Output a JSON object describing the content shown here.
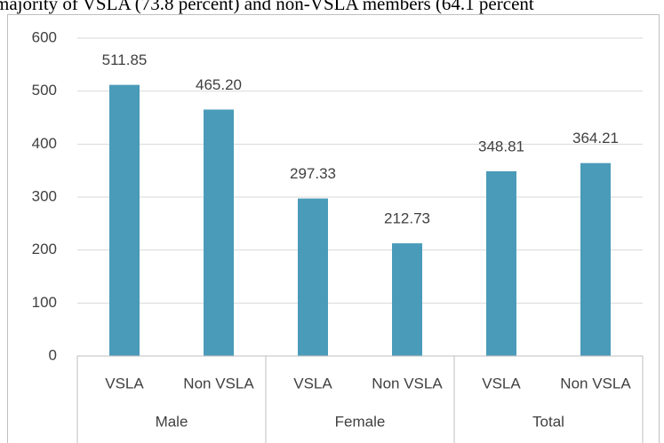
{
  "caption": "majority of VSLA (73.8 percent) and non-VSLA members (64.1 percent",
  "chart_data": {
    "type": "bar",
    "categories": [
      "VSLA",
      "Non VSLA",
      "VSLA",
      "Non VSLA",
      "VSLA",
      "Non VSLA"
    ],
    "groups": [
      "Male",
      "Female",
      "Total"
    ],
    "values": [
      511.85,
      465.2,
      297.33,
      212.73,
      348.81,
      364.21
    ],
    "value_labels": [
      "511.85",
      "465.20",
      "297.33",
      "212.73",
      "348.81",
      "364.21"
    ],
    "color": "#4a9bb9",
    "ylim": [
      0,
      600
    ],
    "yticks": [
      0,
      100,
      200,
      300,
      400,
      500,
      600
    ],
    "grid": true
  }
}
